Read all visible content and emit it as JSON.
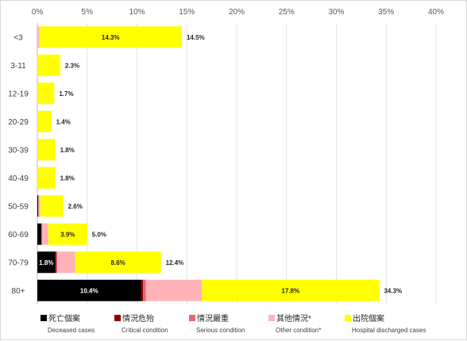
{
  "chart_data": {
    "type": "bar",
    "orientation": "horizontal",
    "stacked": true,
    "title": "",
    "xlabel": "",
    "ylabel": "",
    "xlim": [
      0,
      40
    ],
    "x_ticks": [
      "0%",
      "5%",
      "10%",
      "15%",
      "20%",
      "25%",
      "30%",
      "35%",
      "40%"
    ],
    "grid": true,
    "legend_position": "bottom",
    "categories": [
      "<3",
      "3-11",
      "12-19",
      "20-29",
      "30-39",
      "40-49",
      "50-59",
      "60-69",
      "70-79",
      "80+"
    ],
    "series": [
      {
        "name": "死亡個案",
        "name_en": "Deceased cases",
        "color": "#000000",
        "values": [
          0,
          0,
          0,
          0,
          0,
          0,
          0.1,
          0.4,
          1.8,
          10.4
        ],
        "labels": [
          "",
          "",
          "",
          "",
          "",
          "",
          "",
          "",
          "1.8%",
          "10.4%"
        ]
      },
      {
        "name": "情況危殆",
        "name_en": "Critical condition",
        "color": "#8b0000",
        "values": [
          0,
          0,
          0,
          0,
          0,
          0,
          0,
          0,
          0.1,
          0.2
        ],
        "labels": [
          "",
          "",
          "",
          "",
          "",
          "",
          "",
          "",
          "",
          ""
        ]
      },
      {
        "name": "情況嚴重",
        "name_en": "Serious condition",
        "color": "#e8696e",
        "values": [
          0,
          0,
          0,
          0,
          0,
          0,
          0,
          0.1,
          0.1,
          0.3
        ],
        "labels": [
          "",
          "",
          "",
          "",
          "",
          "",
          "",
          "",
          "",
          ""
        ]
      },
      {
        "name": "其他情況*",
        "name_en": "Other condition*",
        "color": "#ffb3b8",
        "values": [
          0.2,
          0,
          0,
          0,
          0,
          0,
          0.2,
          0.6,
          1.8,
          5.6
        ],
        "labels": [
          "",
          "",
          "",
          "",
          "",
          "",
          "",
          "",
          "",
          ""
        ]
      },
      {
        "name": "出院個案",
        "name_en": "Hospital discharged cases",
        "color": "#ffff00",
        "values": [
          14.3,
          2.3,
          1.7,
          1.4,
          1.8,
          1.8,
          2.3,
          3.9,
          8.6,
          17.8
        ],
        "labels": [
          "14.3%",
          "",
          "",
          "",
          "",
          "",
          "",
          "3.9%",
          "8.6%",
          "17.8%"
        ]
      }
    ],
    "totals": [
      14.5,
      2.3,
      1.7,
      1.4,
      1.8,
      1.8,
      2.6,
      5.0,
      12.4,
      34.3
    ],
    "total_labels": [
      "14.5%",
      "2.3%",
      "1.7%",
      "1.4%",
      "1.8%",
      "1.8%",
      "2.6%",
      "5.0%",
      "12.4%",
      "34.3%"
    ]
  }
}
